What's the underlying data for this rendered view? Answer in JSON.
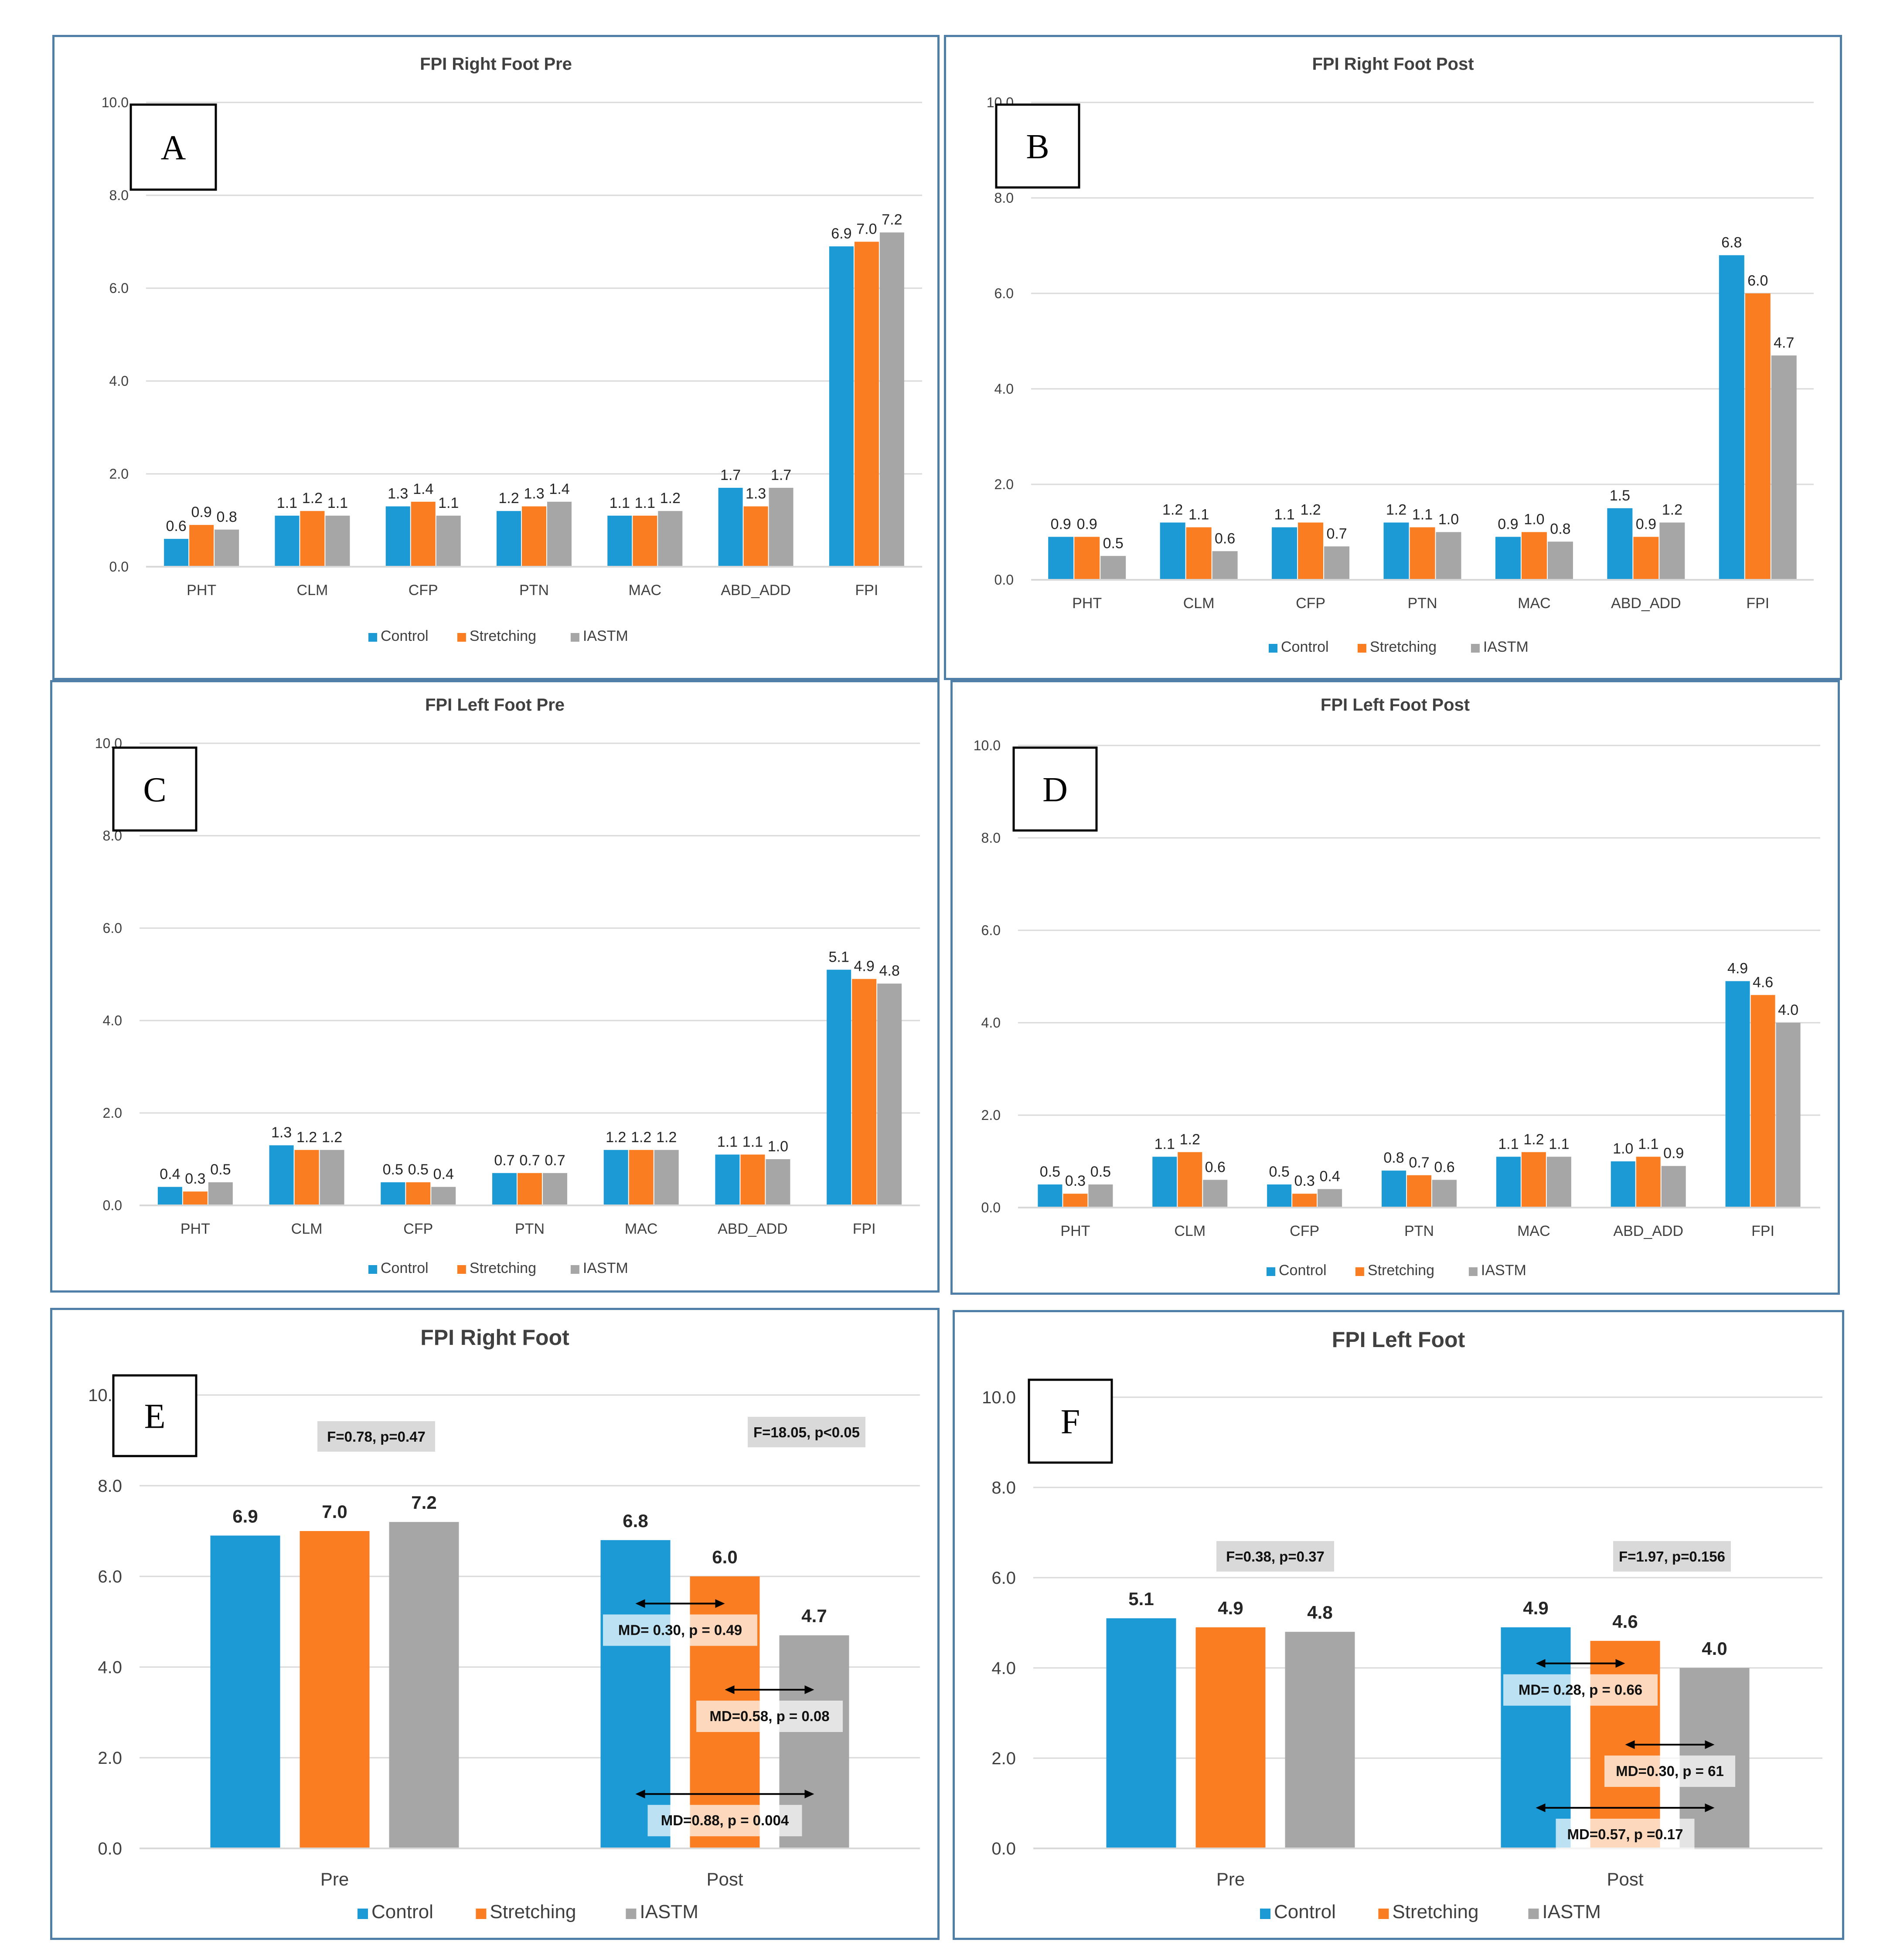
{
  "colors": {
    "control": "#1b9ad6",
    "stretching": "#fb7d21",
    "iastm": "#a6a6a6",
    "grid": "#d9d9d9",
    "badge": "#d9d9d9"
  },
  "legend": [
    "Control",
    "Stretching",
    "IASTM"
  ],
  "chart_data": [
    {
      "id": "A",
      "letter": "A",
      "type": "bar",
      "title": "FPI Right Foot Pre",
      "ylim": [
        0,
        10
      ],
      "yticks": [
        "0.0",
        "2.0",
        "4.0",
        "6.0",
        "8.0",
        "10.0"
      ],
      "categories": [
        "PHT",
        "CLM",
        "CFP",
        "PTN",
        "MAC",
        "ABD_ADD",
        "FPI"
      ],
      "series": [
        {
          "name": "Control",
          "values": [
            0.6,
            1.1,
            1.3,
            1.2,
            1.1,
            1.7,
            6.9
          ]
        },
        {
          "name": "Stretching",
          "values": [
            0.9,
            1.2,
            1.4,
            1.3,
            1.1,
            1.3,
            7.0
          ]
        },
        {
          "name": "IASTM",
          "values": [
            0.8,
            1.1,
            1.1,
            1.4,
            1.2,
            1.7,
            7.2
          ]
        }
      ]
    },
    {
      "id": "B",
      "letter": "B",
      "type": "bar",
      "title": "FPI Right Foot Post",
      "ylim": [
        0,
        10
      ],
      "yticks": [
        "0.0",
        "2.0",
        "4.0",
        "6.0",
        "8.0",
        "10.0"
      ],
      "categories": [
        "PHT",
        "CLM",
        "CFP",
        "PTN",
        "MAC",
        "ABD_ADD",
        "FPI"
      ],
      "series": [
        {
          "name": "Control",
          "values": [
            0.9,
            1.2,
            1.1,
            1.2,
            0.9,
            1.5,
            6.8
          ]
        },
        {
          "name": "Stretching",
          "values": [
            0.9,
            1.1,
            1.2,
            1.1,
            1.0,
            0.9,
            6.0
          ]
        },
        {
          "name": "IASTM",
          "values": [
            0.5,
            0.6,
            0.7,
            1.0,
            0.8,
            1.2,
            4.7
          ]
        }
      ]
    },
    {
      "id": "C",
      "letter": "C",
      "type": "bar",
      "title": "FPI Left Foot Pre",
      "ylim": [
        0,
        10
      ],
      "yticks": [
        "0.0",
        "2.0",
        "4.0",
        "6.0",
        "8.0",
        "10.0"
      ],
      "categories": [
        "PHT",
        "CLM",
        "CFP",
        "PTN",
        "MAC",
        "ABD_ADD",
        "FPI"
      ],
      "series": [
        {
          "name": "Control",
          "values": [
            0.4,
            1.3,
            0.5,
            0.7,
            1.2,
            1.1,
            5.1
          ]
        },
        {
          "name": "Stretching",
          "values": [
            0.3,
            1.2,
            0.5,
            0.7,
            1.2,
            1.1,
            4.9
          ]
        },
        {
          "name": "IASTM",
          "values": [
            0.5,
            1.2,
            0.4,
            0.7,
            1.2,
            1.0,
            4.8
          ]
        }
      ]
    },
    {
      "id": "D",
      "letter": "D",
      "type": "bar",
      "title": "FPI Left Foot Post",
      "ylim": [
        0,
        10
      ],
      "yticks": [
        "0.0",
        "2.0",
        "4.0",
        "6.0",
        "8.0",
        "10.0"
      ],
      "categories": [
        "PHT",
        "CLM",
        "CFP",
        "PTN",
        "MAC",
        "ABD_ADD",
        "FPI"
      ],
      "series": [
        {
          "name": "Control",
          "values": [
            0.5,
            1.1,
            0.5,
            0.8,
            1.1,
            1.0,
            4.9
          ]
        },
        {
          "name": "Stretching",
          "values": [
            0.3,
            1.2,
            0.3,
            0.7,
            1.2,
            1.1,
            4.6
          ]
        },
        {
          "name": "IASTM",
          "values": [
            0.5,
            0.6,
            0.4,
            0.6,
            1.1,
            0.9,
            4.0
          ]
        }
      ]
    },
    {
      "id": "E",
      "letter": "E",
      "type": "bar",
      "title": "FPI Right Foot",
      "ylim": [
        0,
        10
      ],
      "yticks": [
        "0.0",
        "2.0",
        "4.0",
        "6.0",
        "8.0",
        "10.0"
      ],
      "categories": [
        "Pre",
        "Post"
      ],
      "series": [
        {
          "name": "Control",
          "values": [
            6.9,
            6.8
          ]
        },
        {
          "name": "Stretching",
          "values": [
            7.0,
            6.0
          ]
        },
        {
          "name": "IASTM",
          "values": [
            7.2,
            4.7
          ]
        }
      ],
      "stats": [
        "F=0.78, p=0.47",
        "F=18.05, p<0.05"
      ],
      "comparisons": [
        {
          "label": "MD= 0.30, p = 0.49",
          "from": 0,
          "to": 1,
          "y": 5.4
        },
        {
          "label": "MD=0.58, p = 0.08",
          "from": 1,
          "to": 2,
          "y": 3.5
        },
        {
          "label": "MD=0.88, p = 0.004",
          "from": 0,
          "to": 2,
          "y": 1.2
        }
      ]
    },
    {
      "id": "F",
      "letter": "F",
      "type": "bar",
      "title": "FPI Left Foot",
      "ylim": [
        0,
        10
      ],
      "yticks": [
        "0.0",
        "2.0",
        "4.0",
        "6.0",
        "8.0",
        "10.0"
      ],
      "categories": [
        "Pre",
        "Post"
      ],
      "series": [
        {
          "name": "Control",
          "values": [
            5.1,
            4.9
          ]
        },
        {
          "name": "Stretching",
          "values": [
            4.9,
            4.6
          ]
        },
        {
          "name": "IASTM",
          "values": [
            4.8,
            4.0
          ]
        }
      ],
      "stats": [
        "F=0.38, p=0.37",
        "F=1.97, p=0.156"
      ],
      "comparisons": [
        {
          "label": "MD= 0.28, p = 0.66",
          "from": 0,
          "to": 1,
          "y": 4.1
        },
        {
          "label": "MD=0.30, p = 61",
          "from": 1,
          "to": 2,
          "y": 2.3
        },
        {
          "label": "MD=0.57, p =0.17",
          "from": 0,
          "to": 2,
          "y": 0.9
        }
      ]
    }
  ]
}
